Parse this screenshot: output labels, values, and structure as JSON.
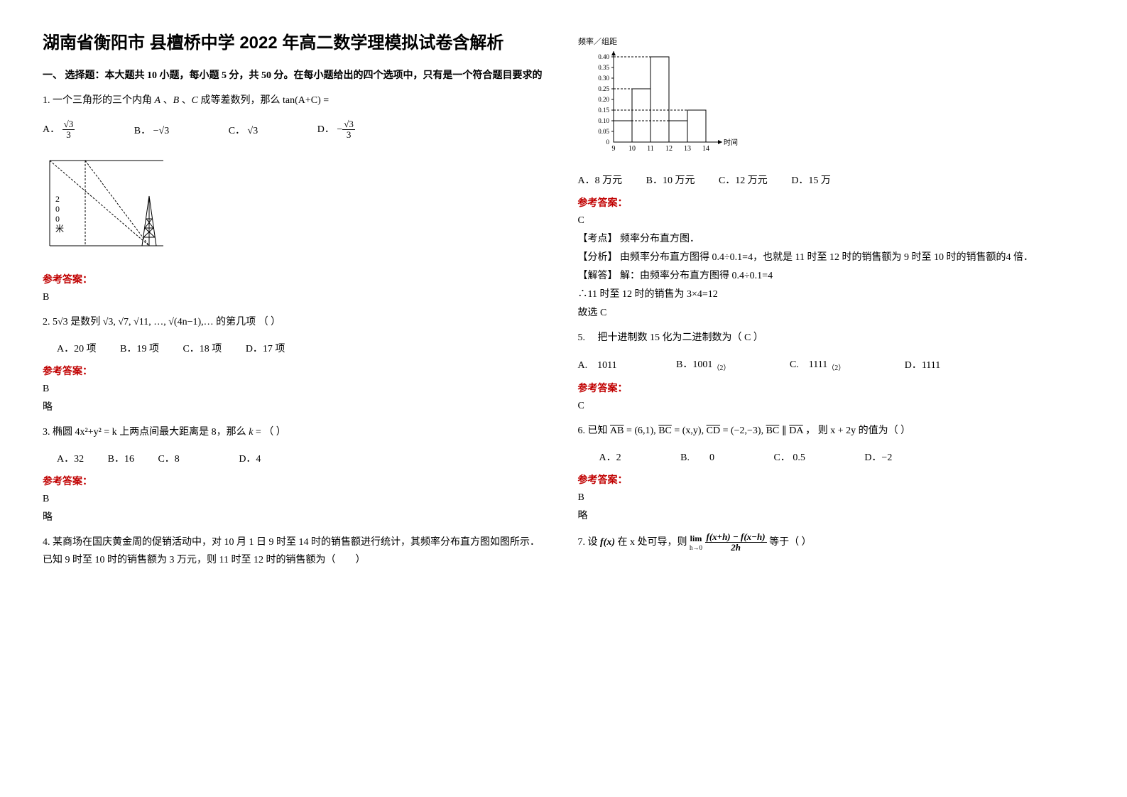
{
  "title": "湖南省衡阳市 县檀桥中学 2022 年高二数学理模拟试卷含解析",
  "section1": {
    "heading": "一、 选择题：本大题共 10 小题，每小题 5 分，共 50 分。在每小题给出的四个选项中，只有是一个符合题目要求的"
  },
  "q1": {
    "stem_prefix": "1. 一个三角形的三个内角 ",
    "stem_mid": " 、",
    "stem_mid2": " 、",
    "stem_suffix": " 成等差数列，那么 ",
    "tan_expr": "tan(A+C) =",
    "optA_label": "A．",
    "optB_label": "B．",
    "optC_label": "C．",
    "optD_label": "D．",
    "answer": "B",
    "diagram_label1": "2",
    "diagram_label2": "0",
    "diagram_label3": "0",
    "diagram_label4": "米"
  },
  "q2": {
    "stem_prefix": "2. ",
    "stem_mid": " 是数列 ",
    "stem_suffix": " 的第几项                 （           ）",
    "optA": "A．20 项",
    "optB": "B．19 项",
    "optC": "C．18 项",
    "optD": "D．17 项",
    "answer": "B",
    "answer_note": "略"
  },
  "q3": {
    "stem_prefix": "3. 椭圆",
    "stem_eq": "4x²+y² = k",
    "stem_suffix": " 上两点间最大距离是 8，那么 ",
    "k_suffix": " = （        ）",
    "optA": "A．32",
    "optB": "B．16",
    "optC": "C．8",
    "optD": "D．4",
    "answer": "B",
    "answer_note": "略"
  },
  "q4": {
    "stem": "4. 某商场在国庆黄金周的促销活动中，对 10 月 1 日 9 时至 14 时的销售额进行统计，其频率分布直方图如图所示．已知 9 时至 10 时的销售额为 3 万元，则 11 时至 12 时的销售额为（　　）",
    "chart": {
      "ylabel": "频率／组距",
      "xlabel": "时间",
      "yticks": [
        "0",
        "0.05",
        "0.10",
        "0.15",
        "0.20",
        "0.25",
        "0.30",
        "0.35",
        "0.40"
      ],
      "xticks": [
        "9",
        "10",
        "11",
        "12",
        "13",
        "14"
      ],
      "bars": [
        {
          "x": 9,
          "h": 0.1
        },
        {
          "x": 10,
          "h": 0.25
        },
        {
          "x": 11,
          "h": 0.4
        },
        {
          "x": 12,
          "h": 0.1
        },
        {
          "x": 13,
          "h": 0.15
        }
      ],
      "bar_color": "#ffffff",
      "border_color": "#000000",
      "dashed_color": "#000000"
    },
    "optA": "A．8 万元",
    "optB": "B．10 万元",
    "optC": "C．12 万元",
    "optD": "D．15 万",
    "answer": "C",
    "exam_point_label": "【考点】",
    "exam_point": "频率分布直方图．",
    "analysis_label": "【分析】",
    "analysis": "由频率分布直方图得 0.4÷0.1=4，也就是 11 时至 12 时的销售额为 9 时至 10 时的销售额的4 倍．",
    "solution_label": "【解答】",
    "solution_line1": "解：由频率分布直方图得 0.4÷0.1=4",
    "solution_line2": "∴11 时至 12 时的销售为 3×4=12",
    "solution_line3": "故选 C"
  },
  "q5": {
    "stem": "5. 　把十进制数 15 化为二进制数为（ C ）",
    "optA": "A.　1011",
    "optB": "B．1001",
    "optB_sub": "（2）",
    "optC": "C.　1111",
    "optC_sub": "（2）",
    "optD": "D．1111",
    "answer": "C"
  },
  "q6": {
    "stem_prefix": "6. 已知 ",
    "ab": "= (6,1), ",
    "bc": "= (x,y), ",
    "cd": "= (−2,−3), ",
    "parallel": " ∥ ",
    "stem_suffix": " ， 则 ",
    "expr": "x + 2y",
    "tail": " 的值为（    ）",
    "optA": "A．2",
    "optB": "B.　　0",
    "optC": "C．",
    "optC_val": "0.5",
    "optD": "D．−2",
    "answer": "B",
    "answer_note": "略"
  },
  "q7": {
    "stem_prefix": "7. 设 ",
    "fx": "f(x)",
    "stem_mid": " 在 x 处可导，则 ",
    "lim_label": "lim",
    "lim_sub": "h→0",
    "frac_num": "f(x+h) − f(x−h)",
    "frac_den": "2h",
    "stem_suffix": " 等于（    ）"
  },
  "answer_label": "参考答案："
}
